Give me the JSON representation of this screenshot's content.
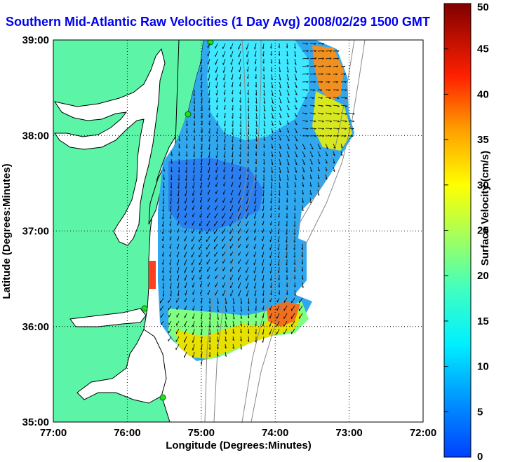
{
  "chart_data": {
    "type": "heatmap",
    "title": "Southern Mid-Atlantic Raw Velocities (1 Day Avg) 2008/02/29 1500 GMT",
    "xlabel": "Longitude (Degrees:Minutes)",
    "ylabel": "Latitude (Degrees:Minutes)",
    "x_ticks": [
      "77:00",
      "76:00",
      "75:00",
      "74:00",
      "73:00",
      "72:00"
    ],
    "y_ticks": [
      "39:00",
      "38:00",
      "37:00",
      "36:00",
      "35:00"
    ],
    "xlim": [
      -77,
      -72
    ],
    "ylim": [
      35,
      39
    ],
    "grid": true,
    "colorbar": {
      "label": "Surface Velocity (cm/s)",
      "min": 0,
      "max": 50,
      "ticks": [
        "0",
        "5",
        "10",
        "15",
        "20",
        "25",
        "30",
        "35",
        "40",
        "45",
        "50"
      ],
      "colormap": "jet"
    },
    "colors": {
      "land": "#5cf5a8",
      "title": "#0000ee",
      "site_marker": "#22dd22"
    }
  }
}
